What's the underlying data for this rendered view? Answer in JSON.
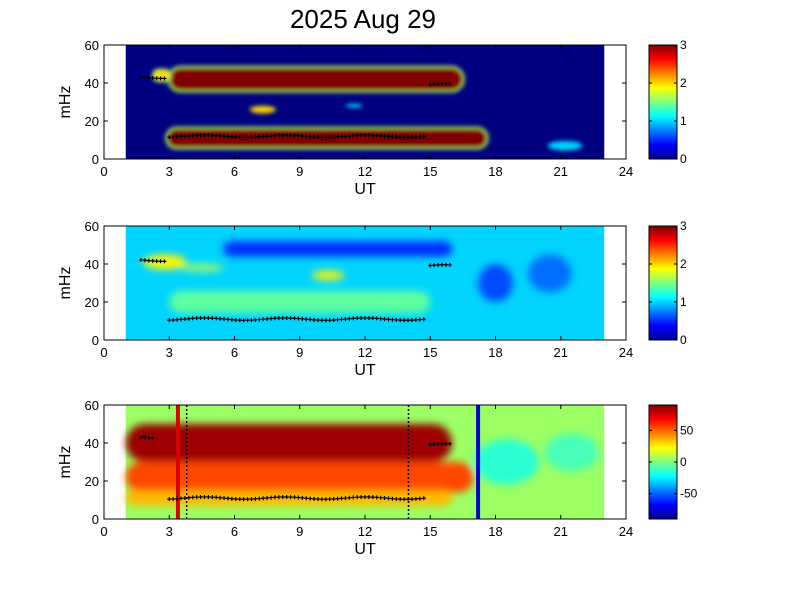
{
  "title": "2025 Aug 29",
  "chart_data": [
    {
      "type": "heatmap",
      "panel": "top",
      "xlabel": "UT",
      "ylabel": "mHz",
      "xlim": [
        0,
        24
      ],
      "ylim": [
        0,
        60
      ],
      "xticks": [
        "0",
        "3",
        "6",
        "9",
        "12",
        "15",
        "18",
        "21",
        "24"
      ],
      "yticks": [
        "0",
        "20",
        "40",
        "60"
      ],
      "data_x_range": [
        1,
        23
      ],
      "colorbar": {
        "min": 0,
        "max": 3,
        "ticks": [
          "0",
          "1",
          "2",
          "3"
        ]
      },
      "background_value": 0,
      "features": [
        {
          "kind": "band",
          "x": [
            3.0,
            16.5
          ],
          "y": 42,
          "height": 12,
          "value": 3
        },
        {
          "kind": "band",
          "x": [
            2.9,
            17.6
          ],
          "y": 11,
          "height": 10,
          "value": 3
        },
        {
          "kind": "band",
          "x": [
            2.3,
            3.0
          ],
          "y": 44,
          "height": 5,
          "value": 2
        },
        {
          "kind": "blob",
          "x": 7.3,
          "y": 26,
          "width": 1.2,
          "height": 4,
          "value": 2
        },
        {
          "kind": "blob",
          "x": 21.2,
          "y": 7,
          "width": 1.6,
          "height": 5,
          "value": 1
        },
        {
          "kind": "blob",
          "x": 11.5,
          "y": 28,
          "width": 0.8,
          "height": 2,
          "value": 1
        }
      ],
      "ridge_points": [
        {
          "x": [
            1.7,
            2.8
          ],
          "y": 43
        },
        {
          "x": [
            3.0,
            14.7
          ],
          "y": 12
        },
        {
          "x": [
            15.0,
            15.9
          ],
          "y": 39
        }
      ]
    },
    {
      "type": "heatmap",
      "panel": "middle",
      "xlabel": "UT",
      "ylabel": "mHz",
      "xlim": [
        0,
        24
      ],
      "ylim": [
        0,
        60
      ],
      "xticks": [
        "0",
        "3",
        "6",
        "9",
        "12",
        "15",
        "18",
        "21",
        "24"
      ],
      "yticks": [
        "0",
        "20",
        "40",
        "60"
      ],
      "data_x_range": [
        1,
        23
      ],
      "colorbar": {
        "min": 0,
        "max": 3,
        "ticks": [
          "0",
          "1",
          "2",
          "3"
        ]
      },
      "background_value": 1.0,
      "features": [
        {
          "kind": "band",
          "x": [
            5.5,
            16
          ],
          "y": 48,
          "height": 8,
          "value": 0.5
        },
        {
          "kind": "blob",
          "x": 2.8,
          "y": 41,
          "width": 2.0,
          "height": 8,
          "value": 1.9
        },
        {
          "kind": "blob",
          "x": 4.5,
          "y": 38,
          "width": 2.0,
          "height": 4,
          "value": 1.6
        },
        {
          "kind": "blob",
          "x": 10.3,
          "y": 34,
          "width": 1.5,
          "height": 5,
          "value": 1.9
        },
        {
          "kind": "band",
          "x": [
            3,
            15
          ],
          "y": 20,
          "height": 12,
          "value": 1.4
        },
        {
          "kind": "blob",
          "x": 18.0,
          "y": 30,
          "width": 1.6,
          "height": 20,
          "value": 0.6
        },
        {
          "kind": "blob",
          "x": 20.5,
          "y": 35,
          "width": 2.0,
          "height": 20,
          "value": 0.7
        }
      ],
      "ridge_points": [
        {
          "x": [
            1.7,
            2.8
          ],
          "y": 42
        },
        {
          "x": [
            3.0,
            14.7
          ],
          "y": 11
        },
        {
          "x": [
            15.0,
            15.9
          ],
          "y": 39
        }
      ]
    },
    {
      "type": "heatmap",
      "panel": "bottom",
      "xlabel": "UT",
      "ylabel": "mHz",
      "xlim": [
        0,
        24
      ],
      "ylim": [
        0,
        60
      ],
      "xticks": [
        "0",
        "3",
        "6",
        "9",
        "12",
        "15",
        "18",
        "21",
        "24"
      ],
      "yticks": [
        "0",
        "20",
        "40",
        "60"
      ],
      "data_x_range": [
        1,
        23
      ],
      "colorbar": {
        "min": -90,
        "max": 90,
        "ticks": [
          "50",
          "0",
          "-50"
        ],
        "tick_values": [
          50,
          0,
          -50
        ]
      },
      "background_value": 5,
      "features": [
        {
          "kind": "band",
          "x": [
            1,
            16
          ],
          "y": 40,
          "height": 20,
          "value": 85
        },
        {
          "kind": "band",
          "x": [
            1,
            17
          ],
          "y": 22,
          "height": 16,
          "value": 55
        },
        {
          "kind": "band",
          "x": [
            1,
            16
          ],
          "y": 11,
          "height": 8,
          "value": 35
        },
        {
          "kind": "blob",
          "x": 18.5,
          "y": 30,
          "width": 3,
          "height": 24,
          "value": -15
        },
        {
          "kind": "blob",
          "x": 21.5,
          "y": 35,
          "width": 2.5,
          "height": 20,
          "value": -10
        }
      ],
      "vertical_lines": [
        {
          "x": 3.4,
          "color": "#dd0000",
          "style": "solid"
        },
        {
          "x": 3.8,
          "color": "#000000",
          "style": "dotted"
        },
        {
          "x": 14.0,
          "color": "#000000",
          "style": "dotted"
        },
        {
          "x": 17.2,
          "color": "#0000cc",
          "style": "solid"
        }
      ],
      "ridge_points": [
        {
          "x": [
            1.7,
            2.4
          ],
          "y": 43
        },
        {
          "x": [
            3.0,
            14.7
          ],
          "y": 11
        },
        {
          "x": [
            15.0,
            15.9
          ],
          "y": 39
        }
      ]
    }
  ]
}
